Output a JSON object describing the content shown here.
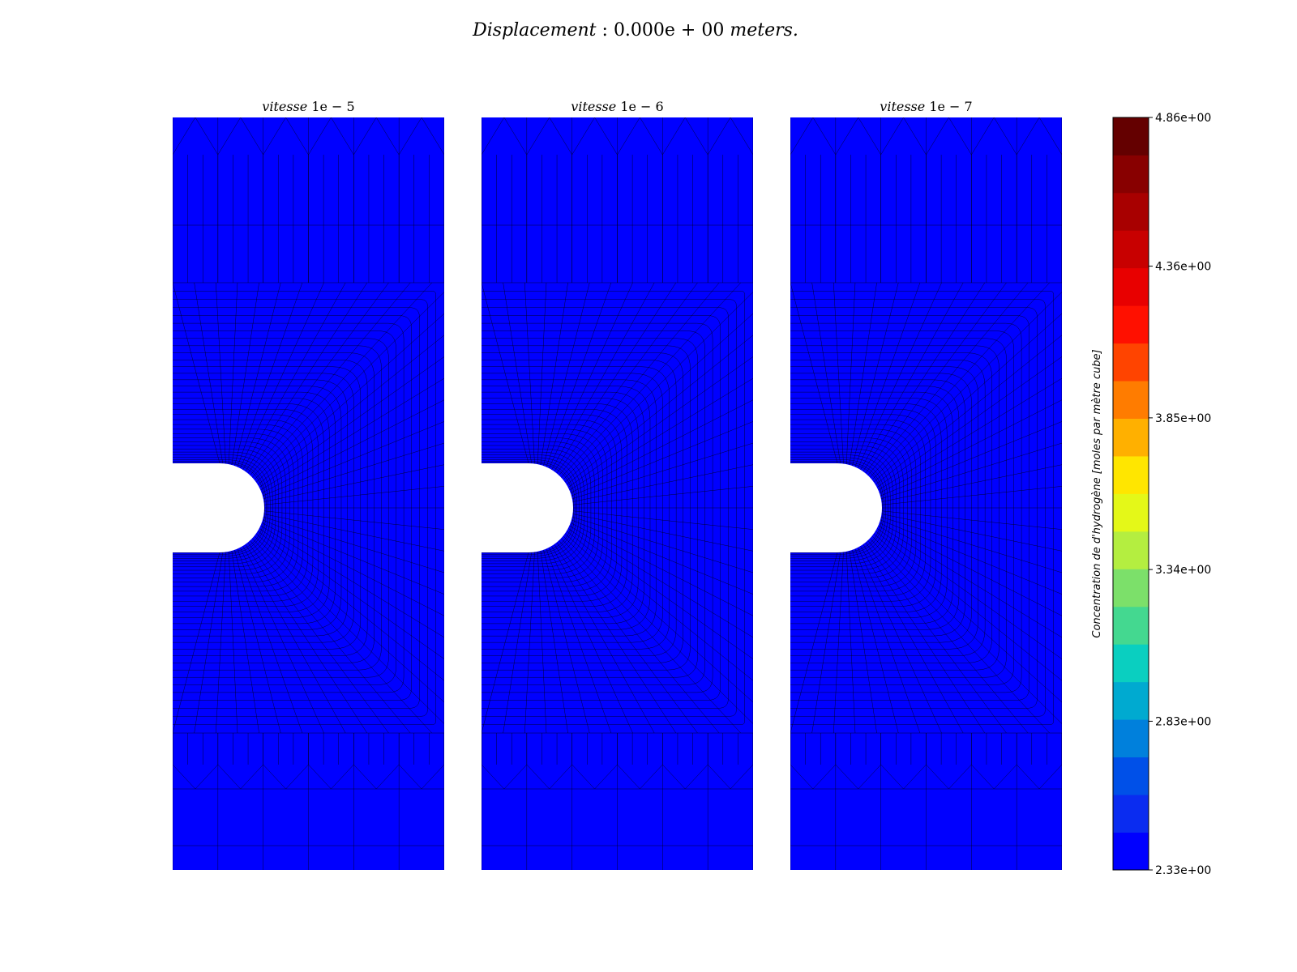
{
  "figure": {
    "suptitle_prefix": "Displacement",
    "suptitle_sep": " : ",
    "suptitle_value": "0.000e + 00",
    "suptitle_unit": " meters."
  },
  "chart_data": [
    {
      "type": "heatmap",
      "title_italic": "vitesse ",
      "title_value": "1e − 5",
      "field_value": 2.33,
      "fill_color": "#0000ff"
    },
    {
      "type": "heatmap",
      "title_italic": "vitesse ",
      "title_value": "1e − 6",
      "field_value": 2.33,
      "fill_color": "#0000ff"
    },
    {
      "type": "heatmap",
      "title_italic": "vitesse ",
      "title_value": "1e − 7",
      "field_value": 2.33,
      "fill_color": "#0000ff"
    }
  ],
  "colorbar": {
    "label": "Concentration de d'hydrogène [moles par mètre cube]",
    "min": 2.33,
    "max": 4.86,
    "ticks": [
      "4.86e+00",
      "4.36e+00",
      "3.85e+00",
      "3.34e+00",
      "2.83e+00",
      "2.33e+00"
    ],
    "tick_values": [
      4.86,
      4.36,
      3.85,
      3.34,
      2.83,
      2.33
    ],
    "colors": [
      "#0000ff",
      "#0a2cf0",
      "#0050e8",
      "#0080dc",
      "#00aad0",
      "#0acfc0",
      "#44d890",
      "#7ce06a",
      "#b4ee40",
      "#e4f818",
      "#ffe600",
      "#ffb000",
      "#ff7c00",
      "#ff4400",
      "#ff1000",
      "#e80000",
      "#c80000",
      "#a80000",
      "#880000",
      "#640000"
    ]
  }
}
